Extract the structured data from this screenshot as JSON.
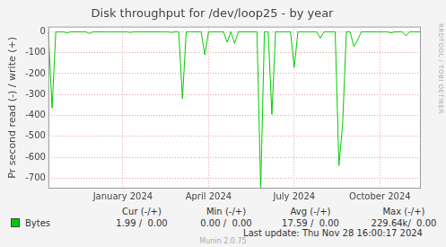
{
  "chart_data": {
    "type": "line",
    "title": "Disk throughput for /dev/loop25 - by year",
    "y_label": "Pr second read (-) / write (+)",
    "categories": [
      null,
      null,
      null,
      null,
      null,
      null,
      null,
      null,
      null,
      null,
      null,
      null,
      null,
      null,
      null,
      null,
      null,
      null,
      null,
      null,
      "January 2024",
      null,
      null,
      null,
      null,
      null,
      null,
      null,
      null,
      null,
      null,
      null,
      null,
      null,
      null,
      null,
      null,
      null,
      null,
      null,
      null,
      null,
      null,
      "April 2024",
      null,
      null,
      null,
      null,
      null,
      null,
      null,
      null,
      null,
      null,
      null,
      null,
      null,
      null,
      null,
      null,
      null,
      null,
      null,
      null,
      null,
      null,
      "July 2024",
      null,
      null,
      null,
      null,
      null,
      null,
      null,
      null,
      null,
      null,
      null,
      null,
      null,
      null,
      null,
      null,
      null,
      null,
      null,
      null,
      null,
      null,
      "October 2024",
      null,
      null,
      null,
      null,
      null,
      null,
      null,
      null,
      null,
      null,
      null
    ],
    "series": [
      {
        "name": "Bytes",
        "color": "#00cc00",
        "values": [
          0,
          -365,
          0,
          0,
          0,
          -5,
          0,
          0,
          0,
          0,
          0,
          -8,
          0,
          0,
          0,
          0,
          0,
          0,
          0,
          0,
          0,
          0,
          -3,
          0,
          0,
          0,
          0,
          0,
          0,
          0,
          0,
          0,
          0,
          -3,
          0,
          0,
          -320,
          0,
          0,
          0,
          0,
          0,
          -110,
          0,
          0,
          0,
          0,
          0,
          -50,
          0,
          -55,
          0,
          0,
          0,
          0,
          0,
          0,
          -750,
          0,
          0,
          -395,
          0,
          0,
          0,
          0,
          0,
          -170,
          0,
          0,
          0,
          0,
          0,
          0,
          -30,
          0,
          0,
          0,
          0,
          -640,
          -440,
          0,
          0,
          -70,
          -40,
          0,
          0,
          0,
          0,
          0,
          0,
          0,
          0,
          -5,
          0,
          0,
          0,
          -20,
          0,
          0,
          0,
          0
        ]
      }
    ],
    "ylim": [
      -750,
      25
    ],
    "yticks": [
      -700,
      -600,
      -500,
      -400,
      -300,
      -200,
      -100,
      0
    ],
    "grid": true,
    "legend": "bottom",
    "summary": {
      "columns": [
        "Cur (-/+)",
        "Min (-/+)",
        "Avg (-/+)",
        "Max (-/+)"
      ],
      "rows": [
        [
          "1.99 /  0.00",
          "0.00 /  0.00",
          "17.59 /  0.00",
          "229.64k/  0.00"
        ]
      ]
    },
    "footer": "Last update: Thu Nov 28 16:00:17 2024",
    "version": "Munin 2.0.75",
    "watermark": "RRDTOOL / TOBI OETIKER"
  }
}
